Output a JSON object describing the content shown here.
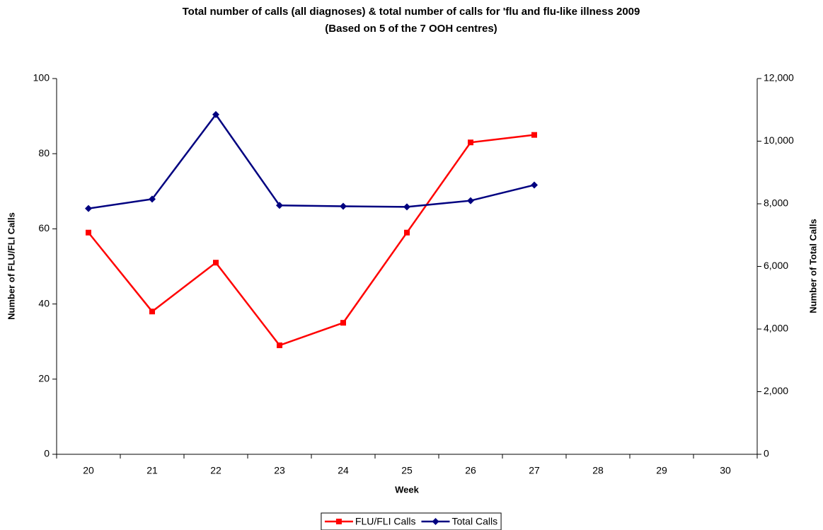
{
  "chart_data": {
    "type": "line",
    "title": "Total number of calls (all diagnoses) & total number of calls for 'flu and flu-like illness 2009",
    "subtitle": "(Based on 5 of the 7 OOH centres)",
    "x_label": "Week",
    "y_label": "Number of FLU/FLI Calls",
    "y2_label": "Number of Total Calls",
    "categories": [
      "20",
      "21",
      "22",
      "23",
      "24",
      "25",
      "26",
      "27",
      "28",
      "29",
      "30"
    ],
    "series": [
      {
        "name": "FLU/FLI Calls",
        "color": "#ff0000",
        "marker": "square",
        "values": [
          59,
          38,
          51,
          29,
          35,
          59,
          83,
          85,
          null,
          null,
          null
        ]
      },
      {
        "name": "Total Calls",
        "color": "#000080",
        "marker": "diamond",
        "axis": "y2",
        "values": [
          7850,
          8150,
          10850,
          7950,
          7920,
          7900,
          8100,
          8600,
          null,
          null,
          null
        ]
      }
    ],
    "ylim": [
      0,
      100
    ],
    "yticks": [
      0,
      20,
      40,
      60,
      80,
      100
    ],
    "y2lim": [
      0,
      12000
    ],
    "y2ticks": [
      0,
      {
        "value": 2000,
        "label": "2,000"
      },
      {
        "value": 4000,
        "label": "4,000"
      },
      {
        "value": 6000,
        "label": "6,000"
      },
      {
        "value": 8000,
        "label": "8,000"
      },
      {
        "value": 10000,
        "label": "10,000"
      },
      {
        "value": 12000,
        "label": "12,000"
      }
    ],
    "grid": false,
    "legend": "bottom"
  }
}
